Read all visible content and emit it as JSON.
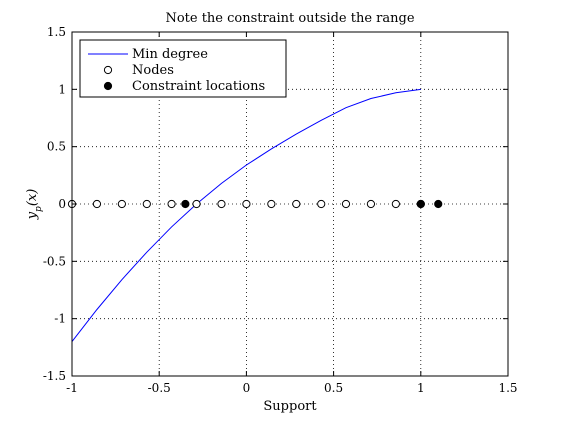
{
  "chart_data": {
    "type": "line",
    "title": "Note the constraint outside the range",
    "xlabel": "Support",
    "ylabel": "y_p(x)",
    "xlim": [
      -1,
      1.5
    ],
    "ylim": [
      -1.5,
      1.5
    ],
    "grid": true,
    "legend_location": "top-left",
    "x_ticks": [
      "-1",
      "-0.5",
      "0",
      "0.5",
      "1",
      "1.5"
    ],
    "y_ticks": [
      "-1.5",
      "-1",
      "-0.5",
      "0",
      "0.5",
      "1",
      "1.5"
    ],
    "series": [
      {
        "name": "Min degree",
        "type": "line",
        "color": "#0000ff",
        "x": [
          -1.0,
          -0.857,
          -0.714,
          -0.571,
          -0.429,
          -0.286,
          -0.143,
          0.0,
          0.143,
          0.286,
          0.429,
          0.571,
          0.714,
          0.857,
          1.0
        ],
        "y": [
          -1.2,
          -0.92,
          -0.66,
          -0.42,
          -0.2,
          0.0,
          0.18,
          0.34,
          0.48,
          0.61,
          0.73,
          0.84,
          0.92,
          0.97,
          1.0
        ]
      },
      {
        "name": "Nodes",
        "type": "scatter",
        "marker": "open-circle",
        "x": [
          -1.0,
          -0.857,
          -0.714,
          -0.571,
          -0.429,
          -0.286,
          -0.143,
          0.0,
          0.143,
          0.286,
          0.429,
          0.571,
          0.714,
          0.857,
          1.0
        ],
        "y": [
          0,
          0,
          0,
          0,
          0,
          0,
          0,
          0,
          0,
          0,
          0,
          0,
          0,
          0,
          0
        ]
      },
      {
        "name": "Constraint locations",
        "type": "scatter",
        "marker": "filled-circle",
        "x": [
          -0.35,
          1.0,
          1.1
        ],
        "y": [
          0,
          0,
          0
        ]
      }
    ]
  }
}
